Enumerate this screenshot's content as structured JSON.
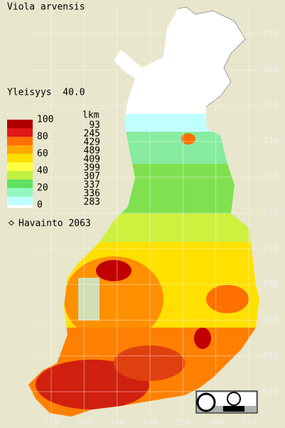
{
  "title": "Viola arvensis",
  "frequency": "Yleisyys  40.0",
  "legend": {
    "scale_labels": [
      100,
      80,
      60,
      40,
      20,
      0
    ],
    "colors": [
      "#b00000",
      "#e01818",
      "#ff7000",
      "#ffa800",
      "#ffe000",
      "#ffff40",
      "#c0f040",
      "#60e060",
      "#90f8c0",
      "#c0ffff"
    ],
    "count_header": "lkm",
    "counts": [
      93,
      245,
      429,
      489,
      409,
      399,
      307,
      337,
      336,
      283
    ]
  },
  "observations": "Havainto 2063",
  "xticks": [
    310,
    320,
    330,
    340,
    350,
    360,
    370
  ],
  "yticks": [
    670,
    680,
    690,
    700,
    710,
    720,
    730,
    740,
    750,
    760,
    770
  ]
}
